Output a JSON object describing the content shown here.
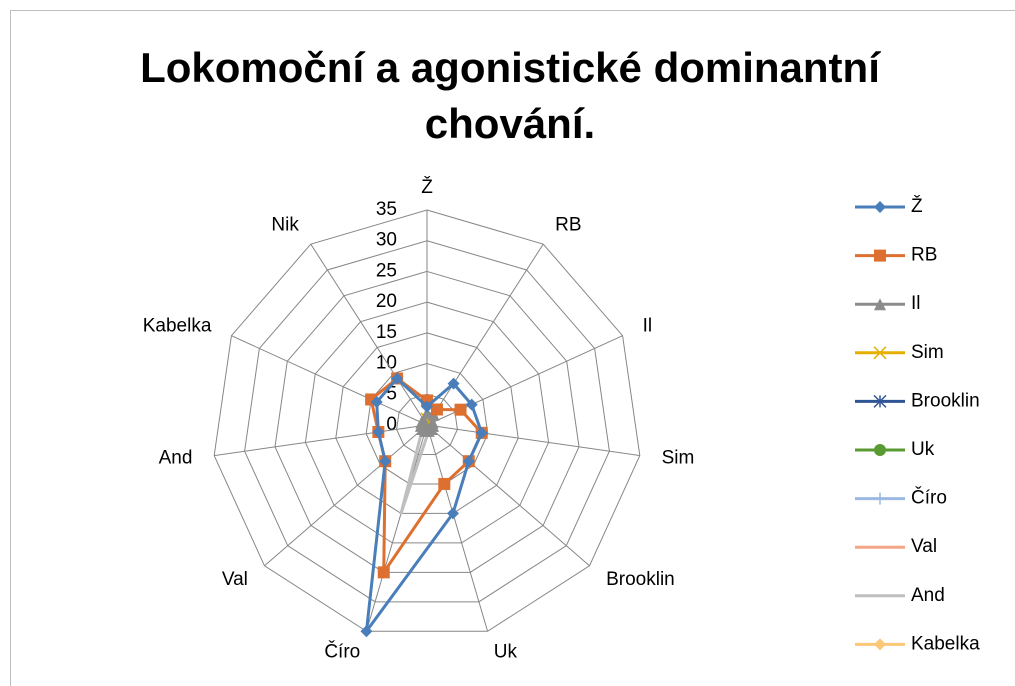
{
  "chart_data": {
    "type": "radar",
    "title": "Lokomoční a agonistické dominantní chování.",
    "categories": [
      "Ž",
      "RB",
      "Il",
      "Sim",
      "Brooklin",
      "Uk",
      "Číro",
      "Val",
      "And",
      "Kabelka",
      "Nik"
    ],
    "series": [
      {
        "name": "Ž",
        "color": "#4a7ebb",
        "marker": "diamond",
        "values": [
          3,
          8,
          8,
          9,
          9,
          15,
          35,
          9,
          8,
          9,
          9
        ]
      },
      {
        "name": "RB",
        "color": "#dd7031",
        "marker": "square",
        "values": [
          4,
          3,
          6,
          9,
          9,
          10,
          25,
          9,
          8,
          10,
          9
        ]
      },
      {
        "name": "Il",
        "color": "#8c8c8c",
        "marker": "triangle",
        "values": [
          2,
          2,
          1,
          1,
          1,
          1,
          1,
          1,
          1,
          1,
          1
        ]
      },
      {
        "name": "Sim",
        "color": "#e6b000",
        "marker": "x",
        "values": [
          1,
          0,
          0,
          0,
          0,
          0,
          0,
          0,
          0,
          0,
          0
        ]
      },
      {
        "name": "Brooklin",
        "color": "#2f5597",
        "marker": "star",
        "values": [
          0,
          0,
          0,
          0,
          0,
          0,
          0,
          0,
          0,
          0,
          0
        ]
      },
      {
        "name": "Uk",
        "color": "#5a9a32",
        "marker": "circle",
        "values": [
          0,
          0,
          0,
          0,
          0,
          0,
          0,
          0,
          0,
          0,
          0
        ]
      },
      {
        "name": "Číro",
        "color": "#9cb9e4",
        "marker": "plus",
        "values": [
          0,
          0,
          0,
          0,
          0,
          0,
          0,
          0,
          0,
          0,
          0
        ]
      },
      {
        "name": "Val",
        "color": "#f3a585",
        "marker": "dash",
        "values": [
          0,
          0,
          0,
          0,
          0,
          0,
          0,
          0,
          0,
          0,
          0
        ]
      },
      {
        "name": "And",
        "color": "#bfbfbf",
        "marker": "none",
        "values": [
          0,
          0,
          0,
          0,
          0,
          1,
          15,
          1,
          0,
          0,
          0
        ]
      },
      {
        "name": "Kabelka",
        "color": "#fcc878",
        "marker": "diamond",
        "values": [
          1,
          0,
          0,
          0,
          0,
          0,
          0,
          0,
          0,
          0,
          0
        ]
      }
    ],
    "ylim": [
      0,
      35
    ],
    "yticks": [
      0,
      5,
      10,
      15,
      20,
      25,
      30,
      35
    ],
    "grid": true,
    "legend": "right"
  }
}
